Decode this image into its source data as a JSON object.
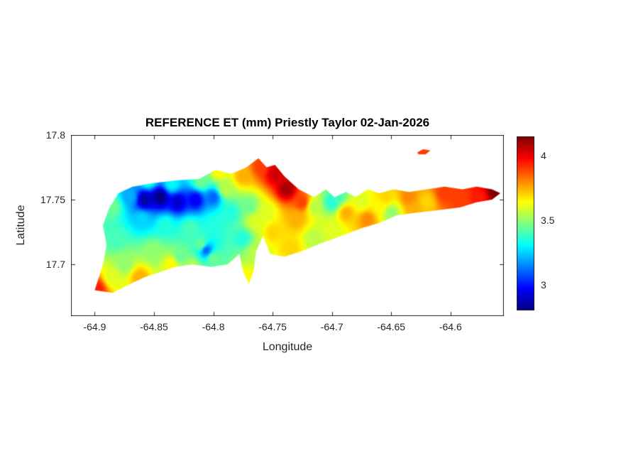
{
  "figure": {
    "background": "#ffffff",
    "axis_color": "#262626",
    "title_color": "#000000"
  },
  "chart_data": {
    "type": "heatmap",
    "title": "REFERENCE ET (mm) Priestly Taylor 02-Jan-2026",
    "xlabel": "Longitude",
    "ylabel": "Latitude",
    "xlim": [
      -64.92,
      -64.555
    ],
    "ylim": [
      17.66,
      17.8
    ],
    "xticks": [
      -64.9,
      -64.85,
      -64.8,
      -64.75,
      -64.7,
      -64.65,
      -64.6
    ],
    "xtick_labels": [
      "-64.9",
      "-64.85",
      "-64.8",
      "-64.75",
      "-64.7",
      "-64.65",
      "-64.6"
    ],
    "yticks": [
      17.7,
      17.75,
      17.8
    ],
    "ytick_labels": [
      "17.7",
      "17.75",
      "17.8"
    ],
    "grid": false,
    "colorbar": {
      "colormap": "jet",
      "vmin": 2.8,
      "vmax": 4.15,
      "ticks": [
        3,
        3.5,
        4
      ],
      "tick_labels": [
        "3",
        "3.5",
        "4"
      ],
      "position": "right"
    },
    "island_outline": [
      [
        -64.9,
        17.68
      ],
      [
        -64.893,
        17.7
      ],
      [
        -64.89,
        17.715
      ],
      [
        -64.893,
        17.73
      ],
      [
        -64.888,
        17.743
      ],
      [
        -64.88,
        17.755
      ],
      [
        -64.868,
        17.76
      ],
      [
        -64.85,
        17.763
      ],
      [
        -64.83,
        17.765
      ],
      [
        -64.812,
        17.766
      ],
      [
        -64.798,
        17.773
      ],
      [
        -64.785,
        17.77
      ],
      [
        -64.772,
        17.775
      ],
      [
        -64.762,
        17.782
      ],
      [
        -64.755,
        17.775
      ],
      [
        -64.748,
        17.777
      ],
      [
        -64.74,
        17.768
      ],
      [
        -64.728,
        17.758
      ],
      [
        -64.715,
        17.752
      ],
      [
        -64.705,
        17.758
      ],
      [
        -64.698,
        17.752
      ],
      [
        -64.688,
        17.756
      ],
      [
        -64.68,
        17.752
      ],
      [
        -64.67,
        17.758
      ],
      [
        -64.66,
        17.755
      ],
      [
        -64.648,
        17.758
      ],
      [
        -64.635,
        17.756
      ],
      [
        -64.62,
        17.758
      ],
      [
        -64.605,
        17.76
      ],
      [
        -64.59,
        17.758
      ],
      [
        -64.578,
        17.76
      ],
      [
        -64.565,
        17.758
      ],
      [
        -64.558,
        17.755
      ],
      [
        -64.565,
        17.75
      ],
      [
        -64.578,
        17.748
      ],
      [
        -64.592,
        17.744
      ],
      [
        -64.61,
        17.742
      ],
      [
        -64.628,
        17.74
      ],
      [
        -64.645,
        17.738
      ],
      [
        -64.66,
        17.732
      ],
      [
        -64.675,
        17.728
      ],
      [
        -64.692,
        17.722
      ],
      [
        -64.71,
        17.716
      ],
      [
        -64.726,
        17.71
      ],
      [
        -64.74,
        17.706
      ],
      [
        -64.752,
        17.708
      ],
      [
        -64.758,
        17.722
      ],
      [
        -64.764,
        17.71
      ],
      [
        -64.766,
        17.695
      ],
      [
        -64.77,
        17.685
      ],
      [
        -64.775,
        17.695
      ],
      [
        -64.778,
        17.708
      ],
      [
        -64.788,
        17.7
      ],
      [
        -64.802,
        17.698
      ],
      [
        -64.818,
        17.7
      ],
      [
        -64.832,
        17.698
      ],
      [
        -64.845,
        17.694
      ],
      [
        -64.858,
        17.69
      ],
      [
        -64.872,
        17.684
      ],
      [
        -64.885,
        17.678
      ]
    ],
    "islets": [
      [
        [
          -64.628,
          17.7865
        ],
        [
          -64.623,
          17.789
        ],
        [
          -64.617,
          17.788
        ],
        [
          -64.621,
          17.785
        ],
        [
          -64.627,
          17.785
        ]
      ]
    ],
    "samples": [
      [
        -64.898,
        17.681,
        3.95
      ],
      [
        -64.885,
        17.69,
        3.6
      ],
      [
        -64.875,
        17.7,
        3.5
      ],
      [
        -64.882,
        17.72,
        3.4
      ],
      [
        -64.885,
        17.745,
        3.45
      ],
      [
        -64.87,
        17.752,
        3.2
      ],
      [
        -64.858,
        17.75,
        2.85
      ],
      [
        -64.845,
        17.752,
        2.8
      ],
      [
        -64.83,
        17.748,
        2.9
      ],
      [
        -64.815,
        17.75,
        2.95
      ],
      [
        -64.8,
        17.752,
        3.1
      ],
      [
        -64.855,
        17.765,
        3.35
      ],
      [
        -64.835,
        17.762,
        3.3
      ],
      [
        -64.81,
        17.764,
        3.45
      ],
      [
        -64.86,
        17.735,
        3.25
      ],
      [
        -64.84,
        17.73,
        3.35
      ],
      [
        -64.82,
        17.728,
        3.4
      ],
      [
        -64.85,
        17.71,
        3.5
      ],
      [
        -64.835,
        17.7,
        3.65
      ],
      [
        -64.818,
        17.698,
        3.55
      ],
      [
        -64.8,
        17.705,
        3.45
      ],
      [
        -64.862,
        17.69,
        3.75
      ],
      [
        -64.79,
        17.758,
        3.55
      ],
      [
        -64.795,
        17.772,
        3.65
      ],
      [
        -64.775,
        17.768,
        3.75
      ],
      [
        -64.76,
        17.775,
        3.9
      ],
      [
        -64.748,
        17.77,
        4.05
      ],
      [
        -64.738,
        17.758,
        4.1
      ],
      [
        -64.725,
        17.748,
        3.9
      ],
      [
        -64.785,
        17.74,
        3.35
      ],
      [
        -64.77,
        17.745,
        3.45
      ],
      [
        -64.755,
        17.74,
        3.6
      ],
      [
        -64.806,
        17.711,
        3.1
      ],
      [
        -64.775,
        17.72,
        3.35
      ],
      [
        -64.765,
        17.71,
        3.55
      ],
      [
        -64.772,
        17.69,
        3.65
      ],
      [
        -64.75,
        17.725,
        3.7
      ],
      [
        -64.735,
        17.712,
        3.7
      ],
      [
        -64.73,
        17.735,
        3.75
      ],
      [
        -64.715,
        17.745,
        3.55
      ],
      [
        -64.7,
        17.748,
        3.35
      ],
      [
        -64.688,
        17.74,
        3.75
      ],
      [
        -64.7,
        17.728,
        3.6
      ],
      [
        -64.715,
        17.72,
        3.55
      ],
      [
        -64.695,
        17.752,
        3.4
      ],
      [
        -64.675,
        17.748,
        3.6
      ],
      [
        -64.67,
        17.735,
        3.8
      ],
      [
        -64.66,
        17.745,
        3.65
      ],
      [
        -64.655,
        17.752,
        3.7
      ],
      [
        -64.65,
        17.74,
        3.5
      ],
      [
        -64.635,
        17.752,
        3.8
      ],
      [
        -64.63,
        17.742,
        3.75
      ],
      [
        -64.62,
        17.748,
        3.7
      ],
      [
        -64.605,
        17.755,
        3.9
      ],
      [
        -64.59,
        17.75,
        3.9
      ],
      [
        -64.575,
        17.752,
        3.95
      ],
      [
        -64.563,
        17.756,
        4.15
      ],
      [
        -64.8,
        17.73,
        3.35
      ],
      [
        -64.81,
        17.715,
        3.45
      ],
      [
        -64.828,
        17.706,
        3.45
      ],
      [
        -64.765,
        17.733,
        3.6
      ],
      [
        -64.622,
        17.787,
        3.9
      ]
    ]
  }
}
